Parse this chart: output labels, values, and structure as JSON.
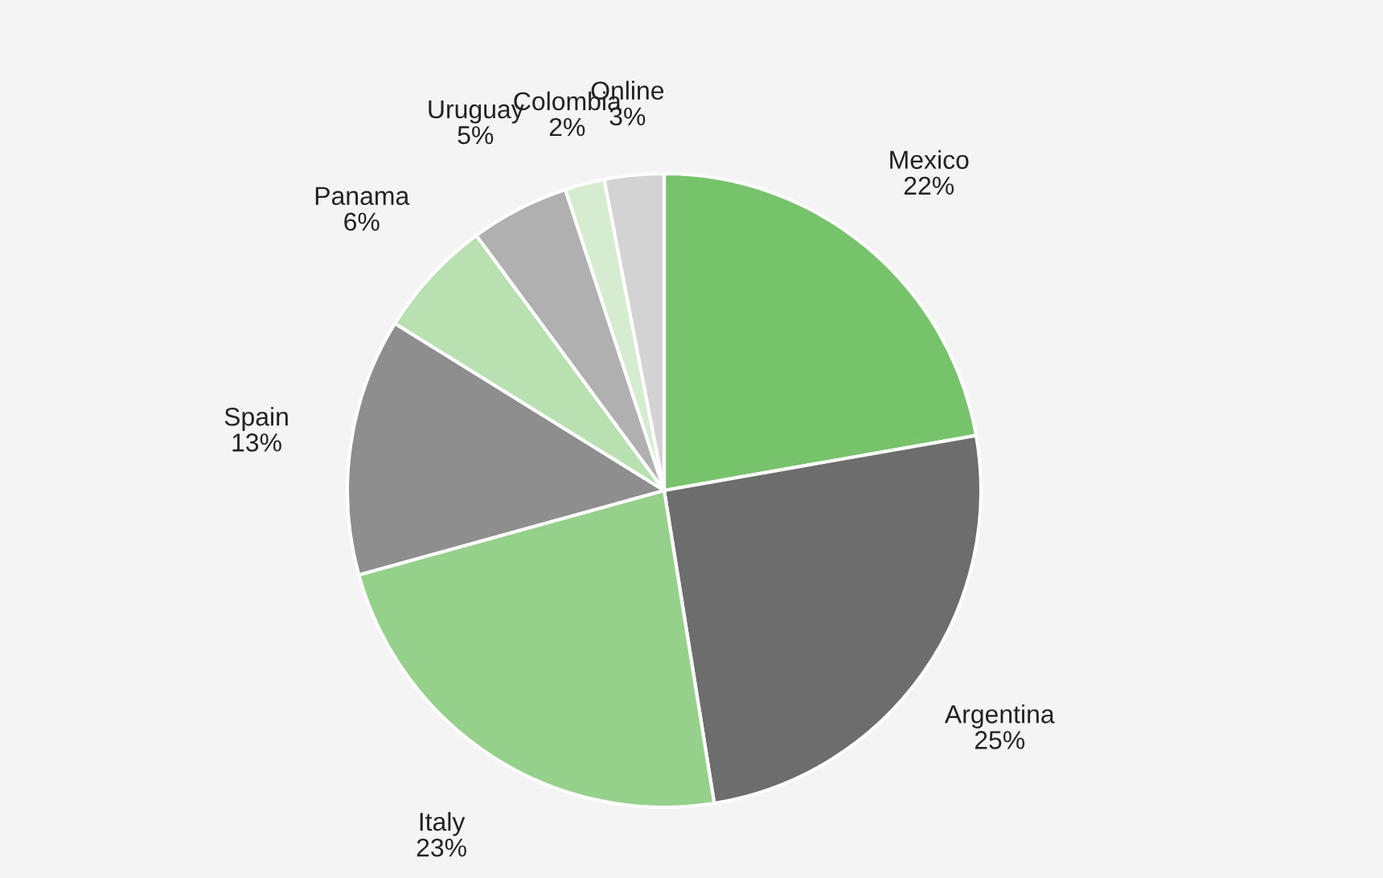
{
  "chart_data": {
    "type": "pie",
    "categories": [
      "Mexico",
      "Argentina",
      "Italy",
      "Spain",
      "Panama",
      "Uruguay",
      "Colombia",
      "Online"
    ],
    "values": [
      22,
      25,
      23,
      13,
      6,
      5,
      2,
      3
    ],
    "value_labels": [
      "22%",
      "25%",
      "23%",
      "13%",
      "6%",
      "5%",
      "2%",
      "3%"
    ],
    "colors": [
      "#77c36c",
      "#6d6d6d",
      "#96d18c",
      "#8e8e8e",
      "#b8e0b0",
      "#b0b0b0",
      "#d5ecd0",
      "#d3d3d3"
    ],
    "legend": false
  }
}
